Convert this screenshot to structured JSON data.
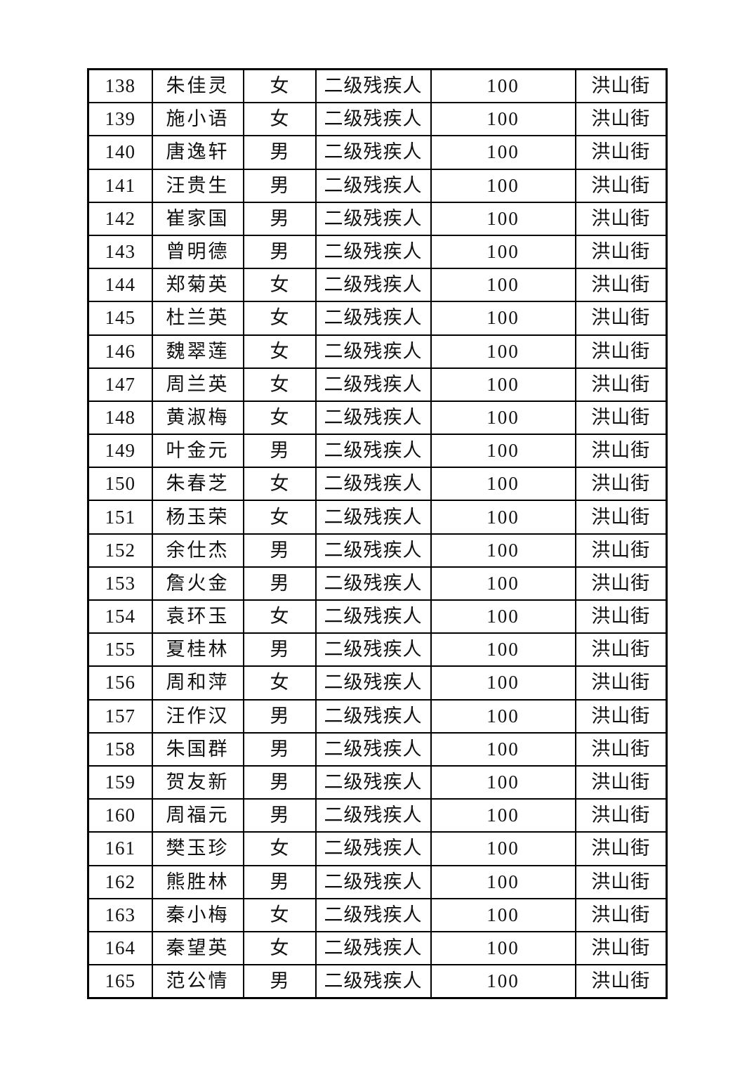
{
  "page": {
    "background_color": "#ffffff",
    "text_color": "#111111",
    "border_color": "#000000"
  },
  "table": {
    "rows": [
      {
        "no": "138",
        "name": "朱佳灵",
        "gender": "女",
        "category": "二级残疾人",
        "amount": "100",
        "street": "洪山街"
      },
      {
        "no": "139",
        "name": "施小语",
        "gender": "女",
        "category": "二级残疾人",
        "amount": "100",
        "street": "洪山街"
      },
      {
        "no": "140",
        "name": "唐逸轩",
        "gender": "男",
        "category": "二级残疾人",
        "amount": "100",
        "street": "洪山街"
      },
      {
        "no": "141",
        "name": "汪贵生",
        "gender": "男",
        "category": "二级残疾人",
        "amount": "100",
        "street": "洪山街"
      },
      {
        "no": "142",
        "name": "崔家国",
        "gender": "男",
        "category": "二级残疾人",
        "amount": "100",
        "street": "洪山街"
      },
      {
        "no": "143",
        "name": "曾明德",
        "gender": "男",
        "category": "二级残疾人",
        "amount": "100",
        "street": "洪山街"
      },
      {
        "no": "144",
        "name": "郑菊英",
        "gender": "女",
        "category": "二级残疾人",
        "amount": "100",
        "street": "洪山街"
      },
      {
        "no": "145",
        "name": "杜兰英",
        "gender": "女",
        "category": "二级残疾人",
        "amount": "100",
        "street": "洪山街"
      },
      {
        "no": "146",
        "name": "魏翠莲",
        "gender": "女",
        "category": "二级残疾人",
        "amount": "100",
        "street": "洪山街"
      },
      {
        "no": "147",
        "name": "周兰英",
        "gender": "女",
        "category": "二级残疾人",
        "amount": "100",
        "street": "洪山街"
      },
      {
        "no": "148",
        "name": "黄淑梅",
        "gender": "女",
        "category": "二级残疾人",
        "amount": "100",
        "street": "洪山街"
      },
      {
        "no": "149",
        "name": "叶金元",
        "gender": "男",
        "category": "二级残疾人",
        "amount": "100",
        "street": "洪山街"
      },
      {
        "no": "150",
        "name": "朱春芝",
        "gender": "女",
        "category": "二级残疾人",
        "amount": "100",
        "street": "洪山街"
      },
      {
        "no": "151",
        "name": "杨玉荣",
        "gender": "女",
        "category": "二级残疾人",
        "amount": "100",
        "street": "洪山街"
      },
      {
        "no": "152",
        "name": "余仕杰",
        "gender": "男",
        "category": "二级残疾人",
        "amount": "100",
        "street": "洪山街"
      },
      {
        "no": "153",
        "name": "詹火金",
        "gender": "男",
        "category": "二级残疾人",
        "amount": "100",
        "street": "洪山街"
      },
      {
        "no": "154",
        "name": "袁环玉",
        "gender": "女",
        "category": "二级残疾人",
        "amount": "100",
        "street": "洪山街"
      },
      {
        "no": "155",
        "name": "夏桂林",
        "gender": "男",
        "category": "二级残疾人",
        "amount": "100",
        "street": "洪山街"
      },
      {
        "no": "156",
        "name": "周和萍",
        "gender": "女",
        "category": "二级残疾人",
        "amount": "100",
        "street": "洪山街"
      },
      {
        "no": "157",
        "name": "汪作汉",
        "gender": "男",
        "category": "二级残疾人",
        "amount": "100",
        "street": "洪山街"
      },
      {
        "no": "158",
        "name": "朱国群",
        "gender": "男",
        "category": "二级残疾人",
        "amount": "100",
        "street": "洪山街"
      },
      {
        "no": "159",
        "name": "贺友新",
        "gender": "男",
        "category": "二级残疾人",
        "amount": "100",
        "street": "洪山街"
      },
      {
        "no": "160",
        "name": "周福元",
        "gender": "男",
        "category": "二级残疾人",
        "amount": "100",
        "street": "洪山街"
      },
      {
        "no": "161",
        "name": "樊玉珍",
        "gender": "女",
        "category": "二级残疾人",
        "amount": "100",
        "street": "洪山街"
      },
      {
        "no": "162",
        "name": "熊胜林",
        "gender": "男",
        "category": "二级残疾人",
        "amount": "100",
        "street": "洪山街"
      },
      {
        "no": "163",
        "name": "秦小梅",
        "gender": "女",
        "category": "二级残疾人",
        "amount": "100",
        "street": "洪山街"
      },
      {
        "no": "164",
        "name": "秦望英",
        "gender": "女",
        "category": "二级残疾人",
        "amount": "100",
        "street": "洪山街"
      },
      {
        "no": "165",
        "name": "范公情",
        "gender": "男",
        "category": "二级残疾人",
        "amount": "100",
        "street": "洪山街"
      }
    ]
  }
}
